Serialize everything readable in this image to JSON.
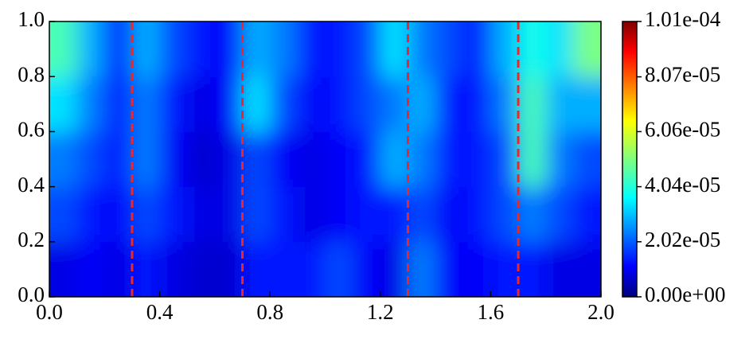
{
  "chart_data": {
    "type": "heatmap",
    "xlim": [
      0,
      2
    ],
    "ylim": [
      0,
      1
    ],
    "xticks": [
      {
        "value": 0,
        "label": "0.0"
      },
      {
        "value": 0.4,
        "label": "0.4"
      },
      {
        "value": 0.8,
        "label": "0.8"
      },
      {
        "value": 1.2,
        "label": "1.2"
      },
      {
        "value": 1.6,
        "label": "1.6"
      },
      {
        "value": 2,
        "label": "2.0"
      }
    ],
    "yticks": [
      {
        "value": 0,
        "label": "0.0"
      },
      {
        "value": 0.2,
        "label": "0.2"
      },
      {
        "value": 0.4,
        "label": "0.4"
      },
      {
        "value": 0.6,
        "label": "0.6"
      },
      {
        "value": 0.8,
        "label": "0.8"
      },
      {
        "value": 1,
        "label": "1.0"
      }
    ],
    "xbins": [
      0,
      0.1,
      0.2,
      0.3,
      0.4,
      0.5,
      0.6,
      0.7,
      0.8,
      0.9,
      1,
      1.1,
      1.2,
      1.3,
      1.4,
      1.5,
      1.6,
      1.7,
      1.8,
      1.9,
      2
    ],
    "ybins": [
      0,
      0.2,
      0.4,
      0.6,
      0.8,
      1
    ],
    "z": [
      [
        1e-05,
        1.2e-05,
        1e-05,
        1.5e-05,
        1e-05,
        8e-06,
        8e-06,
        1.5e-05,
        1.5e-05,
        1.5e-05,
        2e-05,
        1.2e-05,
        1e-05,
        2.5e-05,
        1.2e-05,
        1.2e-05,
        1.5e-05,
        1.5e-05,
        1e-05,
        1e-05
      ],
      [
        2e-05,
        1.5e-05,
        1.2e-05,
        2e-05,
        1.5e-05,
        1e-05,
        1e-05,
        2e-05,
        1.5e-05,
        1e-05,
        1.2e-05,
        1.5e-05,
        1.5e-05,
        2e-05,
        1.2e-05,
        1.5e-05,
        2e-05,
        2.5e-05,
        2e-05,
        1.5e-05
      ],
      [
        2.5e-05,
        2e-05,
        1.5e-05,
        2.5e-05,
        1.2e-05,
        8e-06,
        1e-05,
        2e-05,
        1.2e-05,
        1e-05,
        1.2e-05,
        1.5e-05,
        3e-05,
        2.5e-05,
        1.5e-05,
        1.5e-05,
        2e-05,
        4.5e-05,
        2.5e-05,
        2e-05
      ],
      [
        3.5e-05,
        2.5e-05,
        1.5e-05,
        2.5e-05,
        1.5e-05,
        1e-05,
        1.2e-05,
        3.5e-05,
        2e-05,
        1.2e-05,
        1.5e-05,
        2e-05,
        2.5e-05,
        3e-05,
        1.5e-05,
        1.5e-05,
        2.5e-05,
        4.5e-05,
        3e-05,
        3e-05
      ],
      [
        4.5e-05,
        3e-05,
        1.5e-05,
        3e-05,
        2e-05,
        1.5e-05,
        1.2e-05,
        3e-05,
        2.5e-05,
        1.5e-05,
        1.5e-05,
        2e-05,
        3.5e-05,
        2.5e-05,
        2e-05,
        1.5e-05,
        3e-05,
        4e-05,
        3.5e-05,
        5e-05
      ]
    ],
    "colormap": "jet",
    "clim": [
      0,
      0.000101
    ],
    "cticks": [
      {
        "value": 0,
        "label": "0.00e+00"
      },
      {
        "value": 2.02e-05,
        "label": "2.02e-05"
      },
      {
        "value": 4.04e-05,
        "label": "4.04e-05"
      },
      {
        "value": 6.06e-05,
        "label": "6.06e-05"
      },
      {
        "value": 8.07e-05,
        "label": "8.07e-05"
      },
      {
        "value": 0.000101,
        "label": "1.01e-04"
      }
    ],
    "vlines": {
      "x": [
        0.3,
        0.7,
        1.3,
        1.7
      ],
      "color": "#e8282b"
    }
  }
}
